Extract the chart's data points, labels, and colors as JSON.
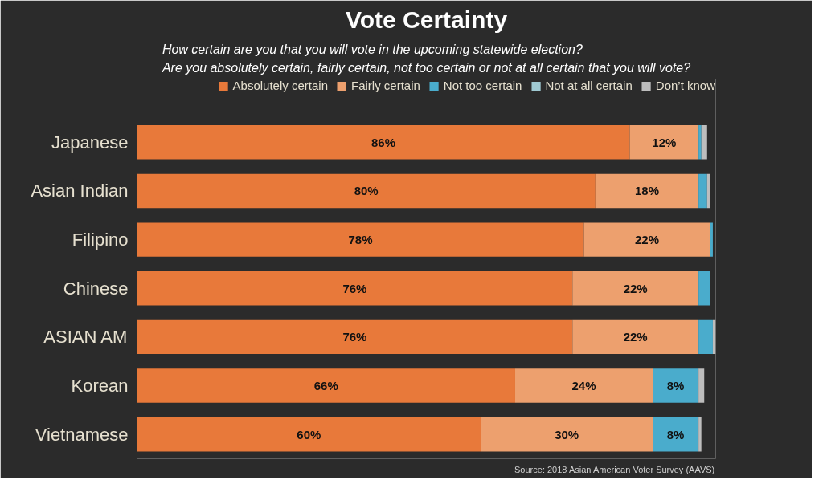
{
  "chart_data": {
    "type": "bar",
    "orientation": "horizontal",
    "stacked": true,
    "title": "Vote Certainty",
    "subtitle": "How certain are you that you will vote in the upcoming statewide election?\nAre you absolutely certain, fairly certain, not too certain or not at all certain that you will vote?",
    "categories": [
      "Japanese",
      "Asian Indian",
      "Filipino",
      "Chinese",
      "ASIAN AM",
      "Korean",
      "Vietnamese"
    ],
    "series": [
      {
        "name": "Absolutely certain",
        "color": "#e8793a",
        "values": [
          86,
          80,
          78,
          76,
          76,
          66,
          60
        ],
        "value_labels": [
          "86%",
          "80%",
          "78%",
          "76%",
          "76%",
          "66%",
          "60%"
        ]
      },
      {
        "name": "Fairly certain",
        "color": "#eda06e",
        "values": [
          12,
          18,
          22,
          22,
          22,
          24,
          30
        ],
        "value_labels": [
          "12%",
          "18%",
          "22%",
          "22%",
          "22%",
          "24%",
          "30%"
        ]
      },
      {
        "name": "Not too certain",
        "color": "#4aaccc",
        "values": [
          0.5,
          1.5,
          0.5,
          2,
          2.5,
          8,
          8
        ],
        "value_labels": [
          null,
          null,
          null,
          null,
          null,
          "8%",
          "8%"
        ]
      },
      {
        "name": "Not at all certain",
        "color": "#9fc9d2",
        "values": [
          0,
          0,
          0,
          0,
          0,
          0,
          0
        ]
      },
      {
        "name": "Don’t know",
        "color": "#bdbdbd",
        "values": [
          1,
          0.5,
          0,
          0,
          0.5,
          1,
          0.5
        ]
      }
    ],
    "legend": "top",
    "grid": false,
    "tick_labels": "y",
    "annotations": [
      "Source: 2018 Asian American Voter Survey (AAVS)"
    ]
  }
}
